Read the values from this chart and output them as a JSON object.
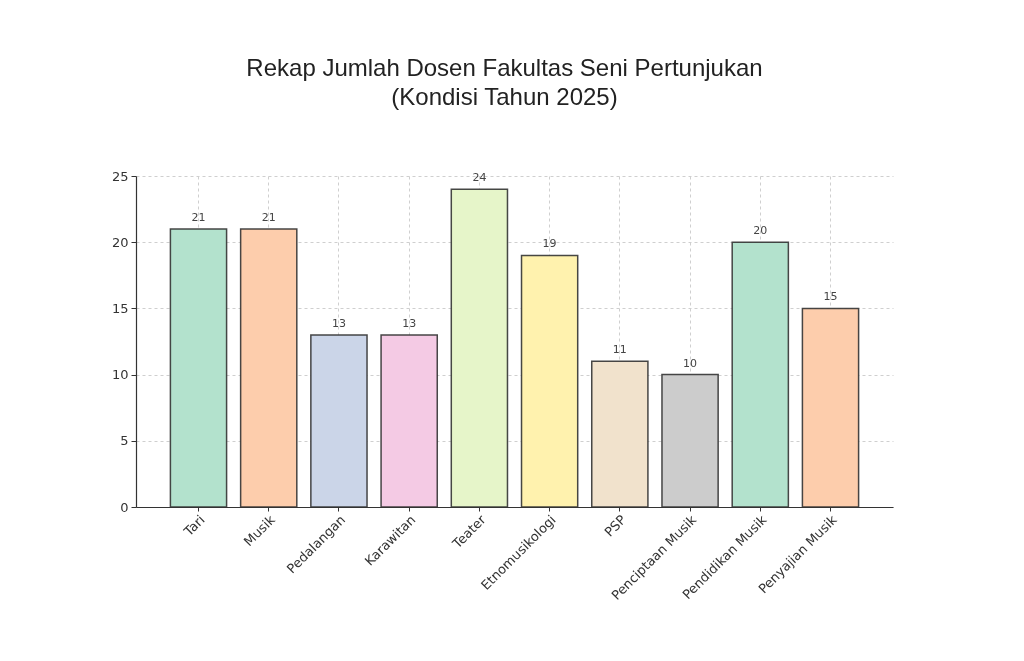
{
  "chart_data": {
    "type": "bar",
    "title": "Rekap Jumlah Dosen Fakultas Seni Pertunjukan\n(Kondisi Tahun 2025)",
    "categories": [
      "Tari",
      "Musik",
      "Pedalangan",
      "Karawitan",
      "Teater",
      "Etnomusikologi",
      "PSP",
      "Penciptaan Musik",
      "Pendidikan Musik",
      "Penyajian Musik"
    ],
    "values": [
      21,
      21,
      13,
      13,
      24,
      19,
      11,
      10,
      20,
      15
    ],
    "colors": [
      "#b3e2cd",
      "#fdcdac",
      "#cbd5e8",
      "#f4cae4",
      "#e6f5c9",
      "#fff2ae",
      "#f1e2cc",
      "#cccccc",
      "#b3e2cd",
      "#fdcdac"
    ],
    "ylim": [
      0,
      25
    ],
    "yticks": [
      0,
      5,
      10,
      15,
      20,
      25
    ],
    "grid": true,
    "data_labels": true
  }
}
